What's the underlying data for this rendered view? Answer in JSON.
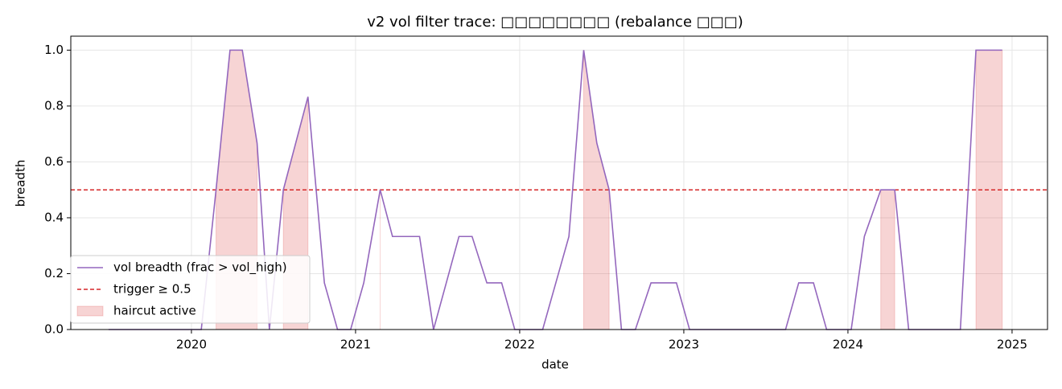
{
  "chart_data": {
    "type": "line",
    "title": "v2 vol filter trace: □□□□□□□□ (rebalance □□□)",
    "xlabel": "date",
    "ylabel": "breadth",
    "x": [
      2019.495,
      2020.0,
      2020.06,
      2020.15,
      2020.235,
      2020.31,
      2020.4,
      2020.475,
      2020.56,
      2020.71,
      2020.81,
      2020.89,
      2020.97,
      2021.05,
      2021.15,
      2021.225,
      2021.39,
      2021.475,
      2021.63,
      2021.71,
      2021.8,
      2021.89,
      2021.97,
      2022.14,
      2022.3,
      2022.39,
      2022.47,
      2022.545,
      2022.62,
      2022.705,
      2022.8,
      2022.955,
      2023.035,
      2023.62,
      2023.7,
      2023.79,
      2023.87,
      2024.02,
      2024.1,
      2024.2,
      2024.285,
      2024.37,
      2024.685,
      2024.78,
      2024.94
    ],
    "series": [
      {
        "name": "vol breadth (frac > vol_high)",
        "color": "#9467bd",
        "values": [
          0,
          0,
          0,
          0.5,
          1.0,
          1.0,
          0.667,
          0,
          0.5,
          0.833,
          0.167,
          0,
          0,
          0.167,
          0.5,
          0.333,
          0.333,
          0,
          0.333,
          0.333,
          0.167,
          0.167,
          0,
          0,
          0.333,
          1.0,
          0.667,
          0.5,
          0,
          0,
          0.167,
          0.167,
          0,
          0,
          0.167,
          0.167,
          0,
          0,
          0.333,
          0.5,
          0.5,
          0,
          0,
          1.0,
          1.0
        ]
      }
    ],
    "hlines": [
      {
        "name": "trigger ≥ 0.5",
        "value": 0.5,
        "color": "#d62728"
      }
    ],
    "shade": {
      "name": "haircut active",
      "color": "#d62728"
    },
    "xlim": [
      2019.265,
      2025.216
    ],
    "ylim": [
      0,
      1.05
    ],
    "xticks": [
      2020,
      2021,
      2022,
      2023,
      2024,
      2025
    ],
    "yticks": [
      {
        "value": 0,
        "label": "0.0"
      },
      0.2,
      0.4,
      0.6,
      0.8,
      {
        "value": 1,
        "label": "1.0"
      }
    ],
    "grid": true,
    "legend": "lower left"
  }
}
